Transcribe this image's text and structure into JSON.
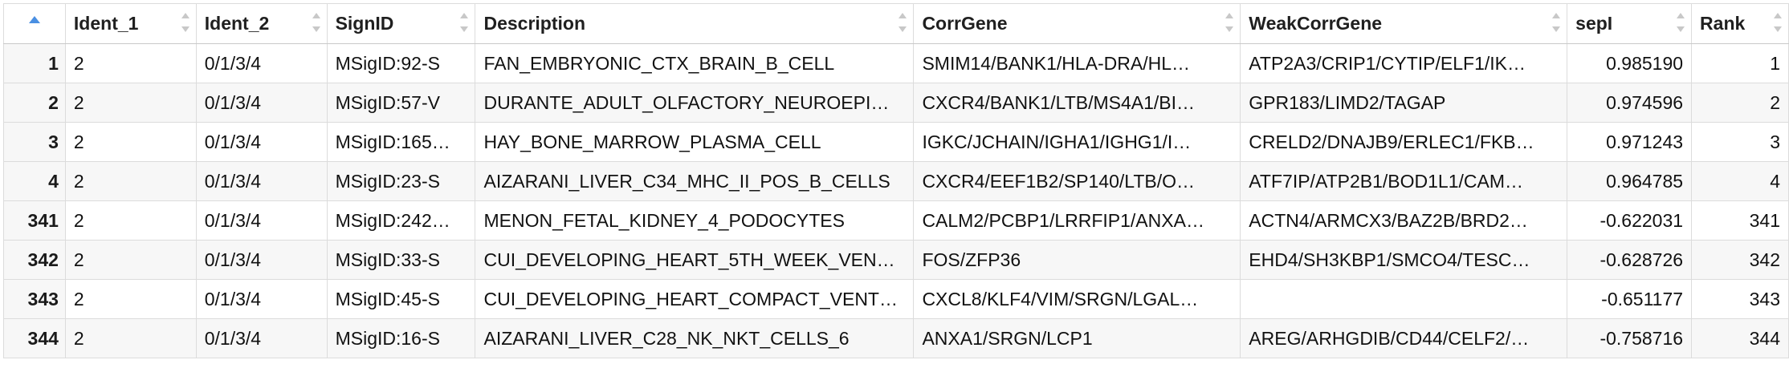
{
  "table": {
    "columns": [
      "",
      "Ident_1",
      "Ident_2",
      "SignID",
      "Description",
      "CorrGene",
      "WeakCorrGene",
      "sepI",
      "Rank"
    ],
    "rows": [
      {
        "idx": "1",
        "ident1": "2",
        "ident2": "0/1/3/4",
        "signid": "MSigID:92-S",
        "description": "FAN_EMBRYONIC_CTX_BRAIN_B_CELL",
        "corrgene": "SMIM14/BANK1/HLA-DRA/HL…",
        "weakcorrgene": "ATP2A3/CRIP1/CYTIP/ELF1/IK…",
        "sepi": "0.985190",
        "rank": "1"
      },
      {
        "idx": "2",
        "ident1": "2",
        "ident2": "0/1/3/4",
        "signid": "MSigID:57-V",
        "description": "DURANTE_ADULT_OLFACTORY_NEUROEPI…",
        "corrgene": "CXCR4/BANK1/LTB/MS4A1/BI…",
        "weakcorrgene": "GPR183/LIMD2/TAGAP",
        "sepi": "0.974596",
        "rank": "2"
      },
      {
        "idx": "3",
        "ident1": "2",
        "ident2": "0/1/3/4",
        "signid": "MSigID:165…",
        "description": "HAY_BONE_MARROW_PLASMA_CELL",
        "corrgene": "IGKC/JCHAIN/IGHA1/IGHG1/I…",
        "weakcorrgene": "CRELD2/DNAJB9/ERLEC1/FKB…",
        "sepi": "0.971243",
        "rank": "3"
      },
      {
        "idx": "4",
        "ident1": "2",
        "ident2": "0/1/3/4",
        "signid": "MSigID:23-S",
        "description": "AIZARANI_LIVER_C34_MHC_II_POS_B_CELLS",
        "corrgene": "CXCR4/EEF1B2/SP140/LTB/O…",
        "weakcorrgene": "ATF7IP/ATP2B1/BOD1L1/CAM…",
        "sepi": "0.964785",
        "rank": "4"
      },
      {
        "idx": "341",
        "ident1": "2",
        "ident2": "0/1/3/4",
        "signid": "MSigID:242…",
        "description": "MENON_FETAL_KIDNEY_4_PODOCYTES",
        "corrgene": "CALM2/PCBP1/LRRFIP1/ANXA…",
        "weakcorrgene": "ACTN4/ARMCX3/BAZ2B/BRD2…",
        "sepi": "-0.622031",
        "rank": "341"
      },
      {
        "idx": "342",
        "ident1": "2",
        "ident2": "0/1/3/4",
        "signid": "MSigID:33-S",
        "description": "CUI_DEVELOPING_HEART_5TH_WEEK_VEN…",
        "corrgene": "FOS/ZFP36",
        "weakcorrgene": "EHD4/SH3KBP1/SMCO4/TESC…",
        "sepi": "-0.628726",
        "rank": "342"
      },
      {
        "idx": "343",
        "ident1": "2",
        "ident2": "0/1/3/4",
        "signid": "MSigID:45-S",
        "description": "CUI_DEVELOPING_HEART_COMPACT_VENT…",
        "corrgene": "CXCL8/KLF4/VIM/SRGN/LGAL…",
        "weakcorrgene": "",
        "sepi": "-0.651177",
        "rank": "343"
      },
      {
        "idx": "344",
        "ident1": "2",
        "ident2": "0/1/3/4",
        "signid": "MSigID:16-S",
        "description": "AIZARANI_LIVER_C28_NK_NKT_CELLS_6",
        "corrgene": "ANXA1/SRGN/LCP1",
        "weakcorrgene": "AREG/ARHGDIB/CD44/CELF2/…",
        "sepi": "-0.758716",
        "rank": "344"
      }
    ]
  },
  "colors": {
    "sort_active": "#4a8fe2",
    "row_alt": "#f7f7f7",
    "border": "#dcdcdc"
  }
}
